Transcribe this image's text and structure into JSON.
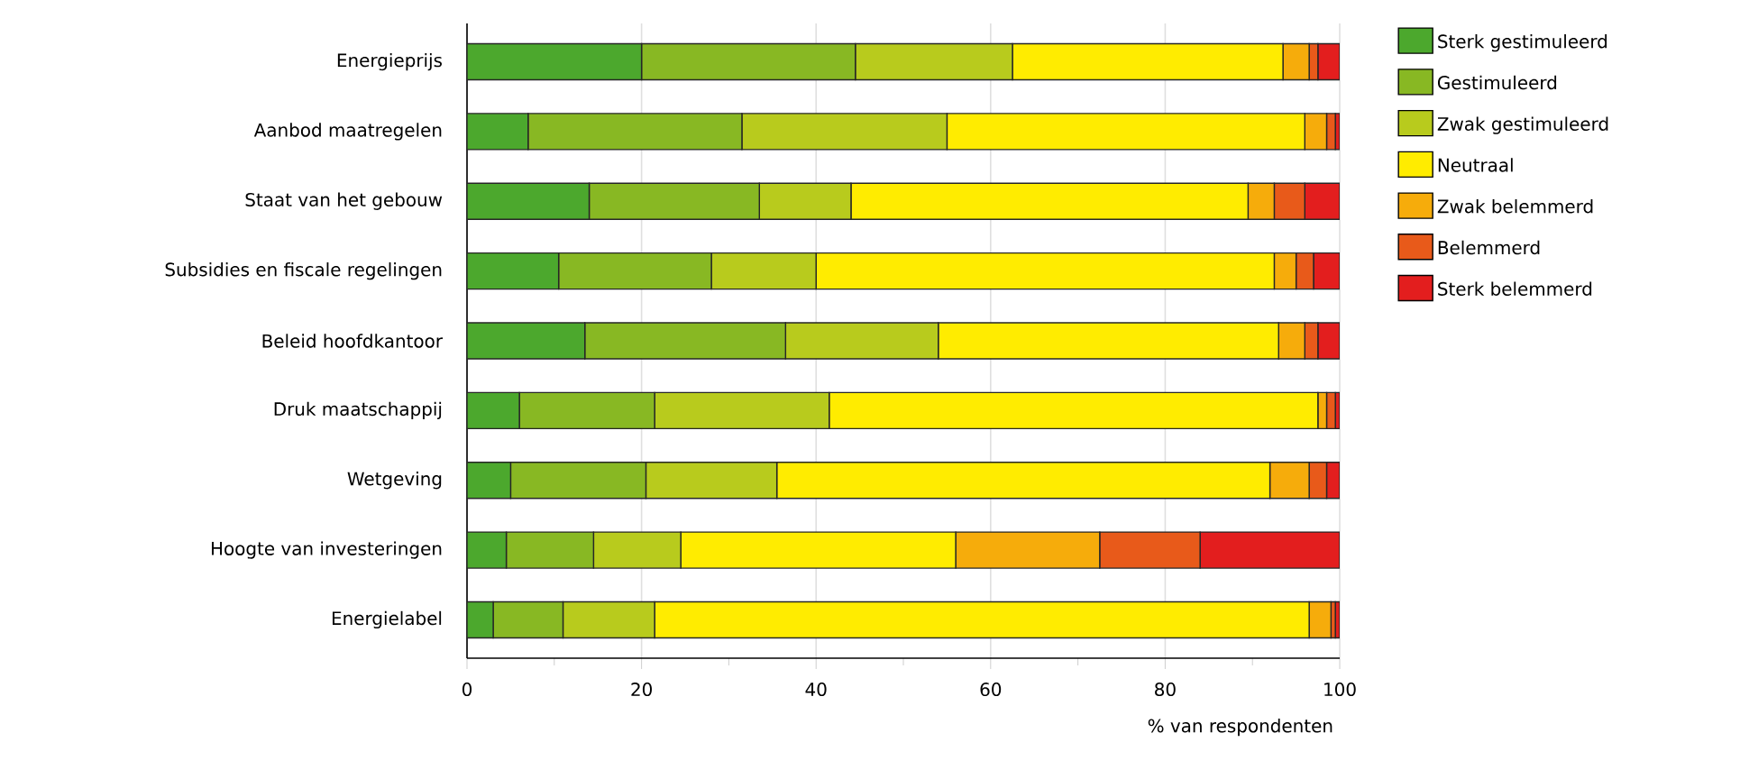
{
  "chart_data": {
    "type": "bar",
    "orientation": "horizontal",
    "stacked": true,
    "xlabel": "% van respondenten",
    "categories": [
      "Energieprijs",
      "Aanbod maatregelen",
      "Staat van het gebouw",
      "Subsidies en fiscale regelingen",
      "Beleid hoofdkantoor",
      "Druk maatschappij",
      "Wetgeving",
      "Hoogte van investeringen",
      "Energielabel"
    ],
    "series": [
      {
        "name": "Sterk gestimuleerd",
        "color": "#4ca82d",
        "values": [
          20,
          7,
          14,
          10.5,
          13.5,
          6,
          5,
          4.5,
          3
        ]
      },
      {
        "name": "Gestimuleerd",
        "color": "#88b823",
        "values": [
          24.5,
          24.5,
          19.5,
          17.5,
          23,
          15.5,
          15.5,
          10,
          8
        ]
      },
      {
        "name": "Zwak gestimuleerd",
        "color": "#b8cb1d",
        "values": [
          18,
          23.5,
          10.5,
          12,
          17.5,
          20,
          15,
          10,
          10.5
        ]
      },
      {
        "name": "Neutraal",
        "color": "#ffec00",
        "values": [
          31,
          41,
          45.5,
          52.5,
          39,
          56,
          56.5,
          31.5,
          75
        ]
      },
      {
        "name": "Zwak belemmerd",
        "color": "#f6ac0b",
        "values": [
          3,
          2.5,
          3,
          2.5,
          3,
          1,
          4.5,
          16.5,
          2.5
        ]
      },
      {
        "name": "Belemmerd",
        "color": "#e85a1a",
        "values": [
          1,
          1,
          3.5,
          2,
          1.5,
          1,
          2,
          11.5,
          0.5
        ]
      },
      {
        "name": "Sterk belemmerd",
        "color": "#e31e1e",
        "values": [
          2.5,
          0.5,
          4,
          3,
          2.5,
          0.5,
          1.5,
          16,
          0.5
        ]
      }
    ],
    "xlim": [
      0,
      100
    ],
    "xticks": [
      0,
      20,
      40,
      60,
      80,
      100
    ],
    "grid": "x",
    "legend": "right"
  }
}
